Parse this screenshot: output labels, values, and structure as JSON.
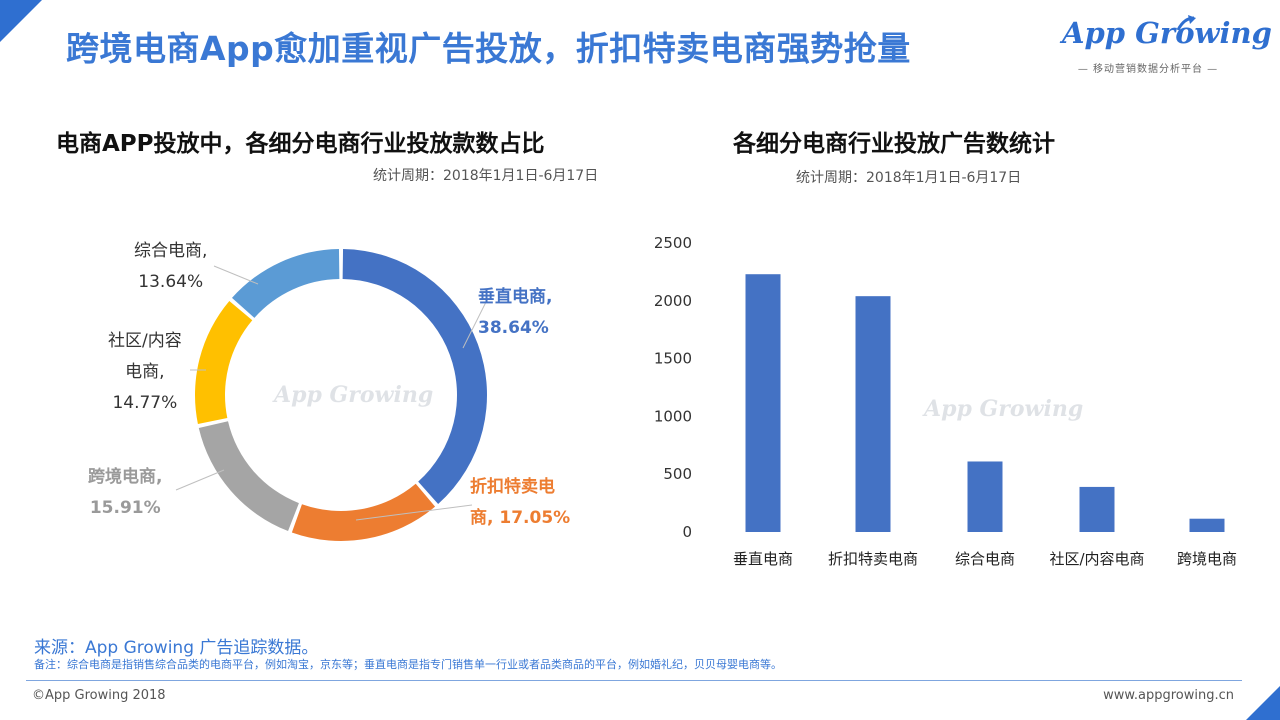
{
  "header": {
    "title": "跨境电商App愈加重视广告投放，折扣特卖电商强势抢量",
    "logo_text": "App Growing",
    "logo_tagline": "— 移动营销数据分析平台 —"
  },
  "watermark": "App Growing",
  "left_panel": {
    "title": "电商APP投放中，各细分电商行业投放款数占比",
    "period": "统计周期：2018年1月1日-6月17日"
  },
  "right_panel": {
    "title": "各细分电商行业投放广告数统计",
    "period": "统计周期：2018年1月1日-6月17日"
  },
  "donut_labels": {
    "vertical": {
      "name": "垂直电商,",
      "pct": "38.64%"
    },
    "discount": {
      "name": "折扣特卖电",
      "pct": "商, 17.05%"
    },
    "cross_border": {
      "name": "跨境电商,",
      "pct": "15.91%"
    },
    "community": {
      "name1": "社区/内容",
      "name2": "电商,",
      "pct": "14.77%"
    },
    "general": {
      "name": "综合电商,",
      "pct": "13.64%"
    }
  },
  "chart_data": [
    {
      "type": "pie",
      "categories": [
        "垂直电商",
        "折扣特卖电商",
        "跨境电商",
        "社区/内容电商",
        "综合电商"
      ],
      "values": [
        38.64,
        17.05,
        15.91,
        14.77,
        13.64
      ],
      "unit": "%",
      "colors": [
        "#4472c4",
        "#ed7d31",
        "#a5a5a5",
        "#ffc000",
        "#5b9bd5"
      ],
      "title": "电商APP投放中，各细分电商行业投放款数占比"
    },
    {
      "type": "bar",
      "categories": [
        "垂直电商",
        "折扣特卖电商",
        "综合电商",
        "社区/内容电商",
        "跨境电商"
      ],
      "values": [
        2230,
        2040,
        610,
        390,
        115
      ],
      "ylim": [
        0,
        2500
      ],
      "yticks": [
        0,
        500,
        1000,
        1500,
        2000,
        2500
      ],
      "color": "#4472c4",
      "title": "各细分电商行业投放广告数统计",
      "grid": false
    }
  ],
  "footer": {
    "source": "来源：App Growing 广告追踪数据。",
    "note": "备注：综合电商是指销售综合品类的电商平台，例如淘宝，京东等；垂直电商是指专门销售单一行业或者品类商品的平台，例如婚礼纪，贝贝母婴电商等。",
    "copyright": "©App  Growing  2018",
    "url": "www.appgrowing.cn"
  }
}
